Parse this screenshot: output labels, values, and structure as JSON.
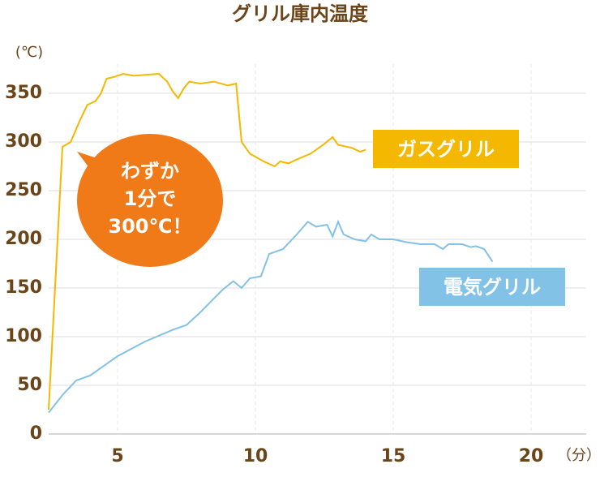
{
  "chart_data": {
    "type": "line",
    "title": "グリル庫内温度",
    "y_label": "(℃)",
    "x_label": "（分）",
    "annotation": [
      "わずか",
      "1分で",
      "300℃！"
    ],
    "xlim": [
      2.5,
      22
    ],
    "xticks": [
      5,
      10,
      15,
      20
    ],
    "ylim": [
      0,
      380
    ],
    "yticks": [
      0,
      50,
      100,
      150,
      200,
      250,
      300,
      350
    ],
    "grid": true,
    "series": [
      {
        "name": "ガスグリル",
        "color": "#f5b800",
        "x": [
          2.5,
          3.0,
          3.3,
          3.6,
          3.9,
          4.2,
          4.4,
          4.6,
          4.9,
          5.2,
          5.6,
          6.0,
          6.5,
          6.8,
          7.0,
          7.2,
          7.4,
          7.6,
          8.0,
          8.5,
          9.0,
          9.3,
          9.5,
          9.8,
          10.3,
          10.7,
          10.9,
          11.2,
          11.5,
          12.0,
          12.5,
          12.8,
          13.0,
          13.5,
          13.8,
          14.0
        ],
        "values": [
          25,
          295,
          300,
          320,
          338,
          342,
          350,
          365,
          367,
          370,
          368,
          369,
          370,
          362,
          352,
          345,
          355,
          362,
          360,
          362,
          358,
          360,
          300,
          288,
          280,
          275,
          280,
          278,
          282,
          288,
          298,
          305,
          297,
          294,
          290,
          292
        ]
      },
      {
        "name": "電気グリル",
        "color": "#82c2e6",
        "x": [
          2.5,
          3.0,
          3.5,
          4.0,
          5.0,
          6.0,
          7.0,
          7.5,
          8.0,
          8.8,
          9.2,
          9.5,
          9.8,
          10.2,
          10.5,
          11.0,
          11.5,
          11.9,
          12.2,
          12.6,
          12.8,
          13.0,
          13.2,
          13.6,
          14.0,
          14.2,
          14.5,
          15.0,
          15.5,
          16.0,
          16.5,
          16.8,
          17.0,
          17.5,
          17.8,
          18.0,
          18.3,
          18.6
        ],
        "values": [
          22,
          40,
          55,
          60,
          80,
          95,
          107,
          112,
          125,
          148,
          157,
          150,
          160,
          162,
          185,
          190,
          205,
          218,
          213,
          215,
          203,
          218,
          205,
          200,
          198,
          205,
          200,
          200,
          197,
          195,
          195,
          190,
          195,
          195,
          192,
          193,
          190,
          177
        ]
      }
    ]
  }
}
